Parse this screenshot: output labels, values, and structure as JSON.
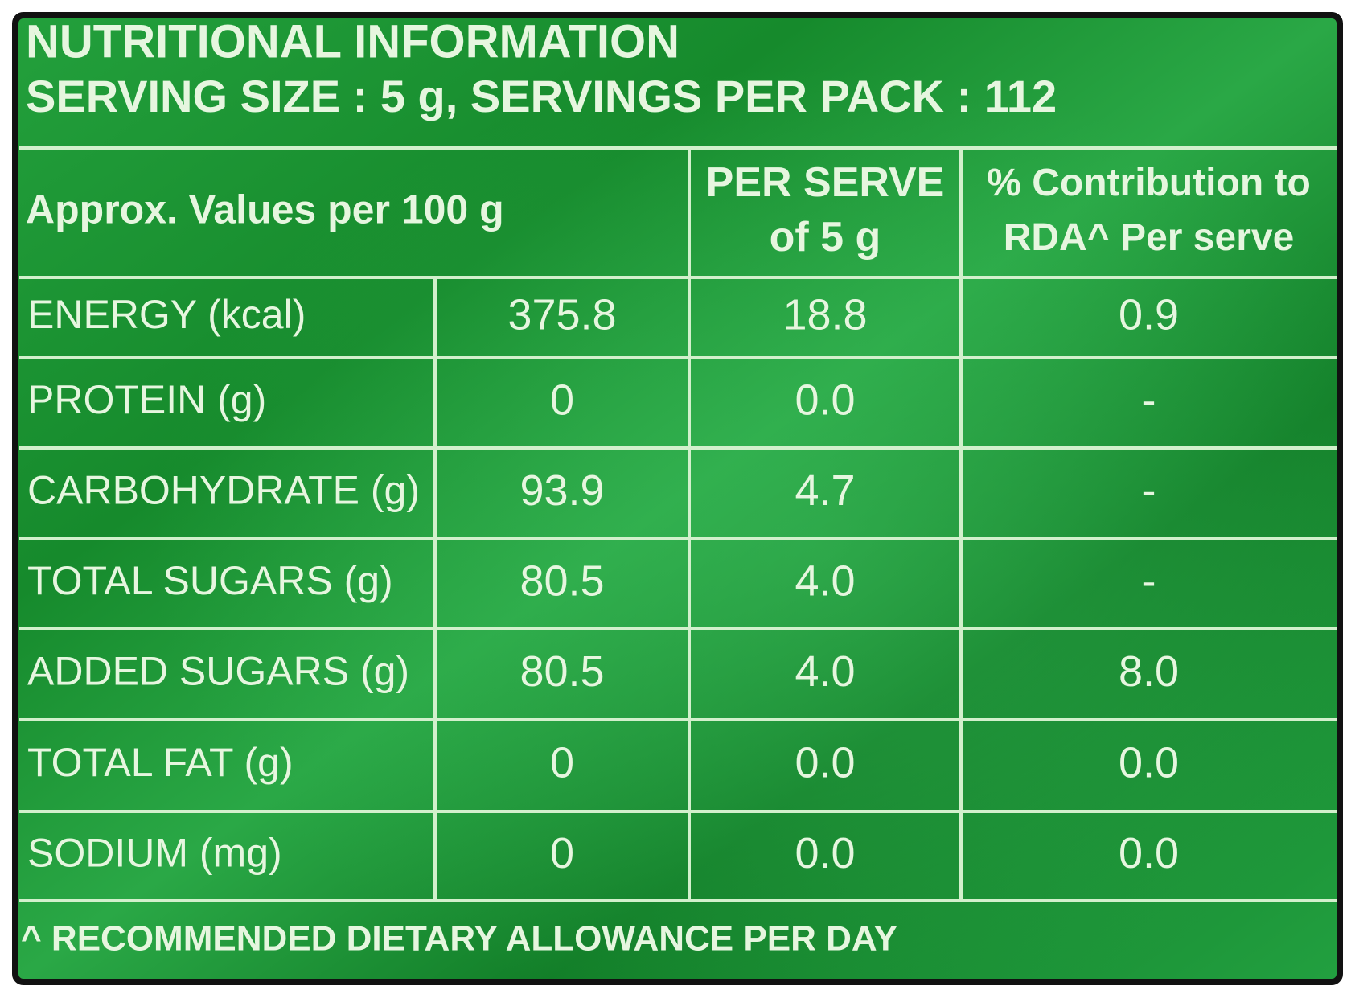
{
  "header": {
    "title": "NUTRITIONAL INFORMATION",
    "subtitle": "SERVING SIZE : 5 g, SERVINGS PER PACK : 112"
  },
  "table": {
    "columns": [
      [
        "Approx. Values per 100 g"
      ],
      [
        "PER SERVE",
        "of 5 g"
      ],
      [
        "% Contribution to",
        "RDA^ Per serve"
      ]
    ],
    "rows": [
      [
        "ENERGY (kcal)",
        "375.8",
        "18.8",
        "0.9"
      ],
      [
        "PROTEIN (g)",
        "0",
        "0.0",
        "-"
      ],
      [
        "CARBOHYDRATE (g)",
        "93.9",
        "4.7",
        "-"
      ],
      [
        "TOTAL SUGARS (g)",
        "80.5",
        "4.0",
        "-"
      ],
      [
        "ADDED SUGARS (g)",
        "80.5",
        "4.0",
        "8.0"
      ],
      [
        "TOTAL FAT (g)",
        "0",
        "0.0",
        "0.0"
      ],
      [
        "SODIUM (mg)",
        "0",
        "0.0",
        "0.0"
      ]
    ]
  },
  "footnote": "^ RECOMMENDED DIETARY ALLOWANCE PER DAY"
}
